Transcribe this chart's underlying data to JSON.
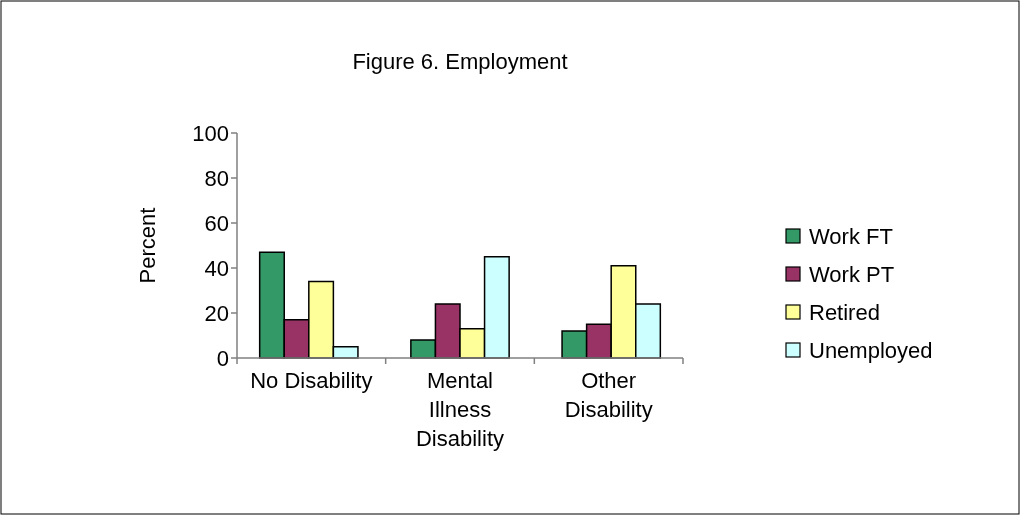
{
  "chart_data": {
    "type": "bar",
    "title": "Figure 6.  Employment",
    "ylabel": "Percent",
    "categories": [
      "No Disability",
      "Mental Illness Disability",
      "Other Disability"
    ],
    "series": [
      {
        "name": "Work FT",
        "color": "#339966",
        "values": [
          47,
          8,
          12
        ]
      },
      {
        "name": "Work PT",
        "color": "#993366",
        "values": [
          17,
          24,
          15
        ]
      },
      {
        "name": "Retired",
        "color": "#ffff99",
        "values": [
          34,
          13,
          41
        ]
      },
      {
        "name": "Unemployed",
        "color": "#ccffff",
        "values": [
          5,
          45,
          24
        ]
      }
    ],
    "ylim": [
      0,
      100
    ],
    "yticks": [
      0,
      20,
      40,
      60,
      80,
      100
    ],
    "legend": "right",
    "grid": false
  }
}
